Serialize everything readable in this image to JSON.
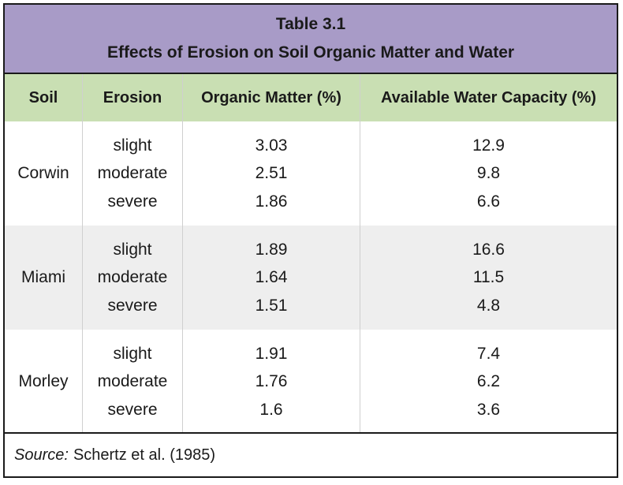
{
  "title": {
    "line1": "Table 3.1",
    "line2": "Effects of Erosion on Soil Organic Matter and Water"
  },
  "headers": {
    "soil": "Soil",
    "erosion": "Erosion",
    "organic_matter": "Organic Matter (%)",
    "water_capacity": "Available Water Capacity (%)"
  },
  "groups": [
    {
      "soil": "Corwin",
      "rows": [
        {
          "erosion": "slight",
          "organic_matter": "3.03",
          "water_capacity": "12.9"
        },
        {
          "erosion": "moderate",
          "organic_matter": "2.51",
          "water_capacity": "9.8"
        },
        {
          "erosion": "severe",
          "organic_matter": "1.86",
          "water_capacity": "6.6"
        }
      ]
    },
    {
      "soil": "Miami",
      "rows": [
        {
          "erosion": "slight",
          "organic_matter": "1.89",
          "water_capacity": "16.6"
        },
        {
          "erosion": "moderate",
          "organic_matter": "1.64",
          "water_capacity": "11.5"
        },
        {
          "erosion": "severe",
          "organic_matter": "1.51",
          "water_capacity": "4.8"
        }
      ]
    },
    {
      "soil": "Morley",
      "rows": [
        {
          "erosion": "slight",
          "organic_matter": "1.91",
          "water_capacity": "7.4"
        },
        {
          "erosion": "moderate",
          "organic_matter": "1.76",
          "water_capacity": "6.2"
        },
        {
          "erosion": "severe",
          "organic_matter": "1.6",
          "water_capacity": "3.6"
        }
      ]
    }
  ],
  "source": {
    "label": "Source:",
    "text": "Schertz et al. (1985)"
  },
  "colors": {
    "title_background": "#a89bc7",
    "header_background": "#c9dfb3",
    "alt_row_background": "#eeeeee",
    "border": "#1a1a1a"
  }
}
